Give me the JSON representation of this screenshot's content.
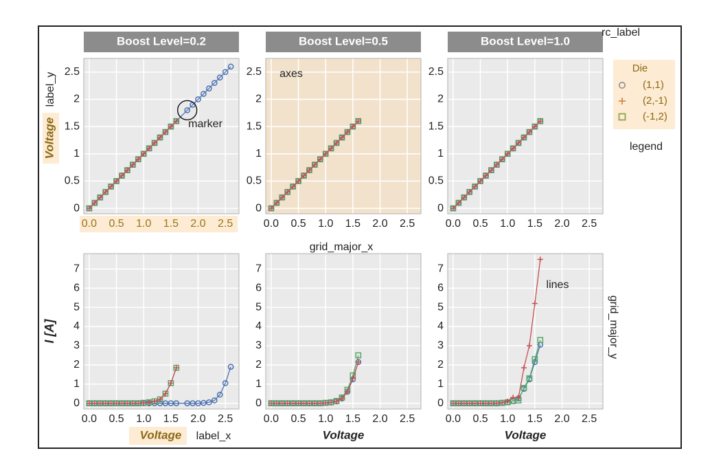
{
  "figure": {
    "facet_titles": [
      "Boost Level=0.2",
      "Boost Level=0.5",
      "Boost Level=1.0"
    ],
    "ylabel_top": "Voltage",
    "ylabel_bottom": "I [A]",
    "xlabel": "Voltage",
    "legend": {
      "title": "Die",
      "entries": [
        {
          "label": "(1,1)",
          "marker": "circle",
          "color": "#4c72b0"
        },
        {
          "label": "(2,-1)",
          "marker": "plus",
          "color": "#c44e52"
        },
        {
          "label": "(-1,2)",
          "marker": "square",
          "color": "#55a868"
        }
      ]
    },
    "annotations": {
      "rc_label": "rc_label",
      "label_y": "label_y",
      "marker": "marker",
      "axes": "axes",
      "legend": "legend",
      "grid_major_x": "grid_major_x",
      "lines": "lines",
      "grid_major_y": "grid_major_y",
      "label_x": "label_x"
    },
    "colors": {
      "panel_bg": "#eaeaea",
      "highlight_bg": "#f2e2cc",
      "label_highlight_bg": "#fdebd3",
      "strip_bg": "#8c8c8c",
      "label_gold": "#8b6914",
      "tick_gold": "#9a7418"
    }
  },
  "chart_data": [
    {
      "type": "line",
      "panel": "Boost Level=0.2",
      "row": "top",
      "xlim": [
        -0.1,
        2.75
      ],
      "ylim": [
        -0.1,
        2.75
      ],
      "xticks": [
        0.0,
        0.5,
        1.0,
        1.5,
        2.0,
        2.5
      ],
      "yticks": [
        0.0,
        0.5,
        1.0,
        1.5,
        2.0,
        2.5
      ],
      "series": [
        {
          "name": "(1,1)",
          "x": [
            0,
            0.1,
            0.2,
            0.3,
            0.4,
            0.5,
            0.6,
            0.7,
            0.8,
            0.9,
            1.0,
            1.1,
            1.2,
            1.3,
            1.4,
            1.5,
            1.6,
            1.8,
            1.9,
            2.0,
            2.1,
            2.2,
            2.3,
            2.4,
            2.5,
            2.6
          ],
          "y": [
            0,
            0.1,
            0.2,
            0.3,
            0.4,
            0.5,
            0.6,
            0.7,
            0.8,
            0.9,
            1.0,
            1.1,
            1.2,
            1.3,
            1.4,
            1.5,
            1.6,
            1.8,
            1.9,
            2.0,
            2.1,
            2.2,
            2.3,
            2.4,
            2.5,
            2.6
          ]
        },
        {
          "name": "(2,-1)",
          "x": [
            0,
            0.1,
            0.2,
            0.3,
            0.4,
            0.5,
            0.6,
            0.7,
            0.8,
            0.9,
            1.0,
            1.1,
            1.2,
            1.3,
            1.4,
            1.5,
            1.6
          ],
          "y": [
            0,
            0.1,
            0.2,
            0.3,
            0.4,
            0.5,
            0.6,
            0.7,
            0.8,
            0.9,
            1.0,
            1.1,
            1.2,
            1.3,
            1.4,
            1.5,
            1.6
          ]
        },
        {
          "name": "(-1,2)",
          "x": [
            0,
            0.1,
            0.2,
            0.3,
            0.4,
            0.5,
            0.6,
            0.7,
            0.8,
            0.9,
            1.0,
            1.1,
            1.2,
            1.3,
            1.4,
            1.5,
            1.6
          ],
          "y": [
            0,
            0.1,
            0.2,
            0.3,
            0.4,
            0.5,
            0.6,
            0.7,
            0.8,
            0.9,
            1.0,
            1.1,
            1.2,
            1.3,
            1.4,
            1.5,
            1.6
          ]
        }
      ]
    },
    {
      "type": "line",
      "panel": "Boost Level=0.5",
      "row": "top",
      "xlim": [
        -0.1,
        2.75
      ],
      "ylim": [
        -0.1,
        2.75
      ],
      "xticks": [
        0.0,
        0.5,
        1.0,
        1.5,
        2.0,
        2.5
      ],
      "yticks": [
        0.0,
        0.5,
        1.0,
        1.5,
        2.0,
        2.5
      ],
      "series": [
        {
          "name": "(1,1)",
          "x": [
            0,
            0.1,
            0.2,
            0.3,
            0.4,
            0.5,
            0.6,
            0.7,
            0.8,
            0.9,
            1.0,
            1.1,
            1.2,
            1.3,
            1.4,
            1.5,
            1.6
          ],
          "y": [
            0,
            0.1,
            0.2,
            0.3,
            0.4,
            0.5,
            0.6,
            0.7,
            0.8,
            0.9,
            1.0,
            1.1,
            1.2,
            1.3,
            1.4,
            1.5,
            1.6
          ]
        },
        {
          "name": "(2,-1)",
          "x": [
            0,
            0.1,
            0.2,
            0.3,
            0.4,
            0.5,
            0.6,
            0.7,
            0.8,
            0.9,
            1.0,
            1.1,
            1.2,
            1.3,
            1.4,
            1.5,
            1.6
          ],
          "y": [
            0,
            0.1,
            0.2,
            0.3,
            0.4,
            0.5,
            0.6,
            0.7,
            0.8,
            0.9,
            1.0,
            1.1,
            1.2,
            1.3,
            1.4,
            1.5,
            1.6
          ]
        },
        {
          "name": "(-1,2)",
          "x": [
            0,
            0.1,
            0.2,
            0.3,
            0.4,
            0.5,
            0.6,
            0.7,
            0.8,
            0.9,
            1.0,
            1.1,
            1.2,
            1.3,
            1.4,
            1.5,
            1.6
          ],
          "y": [
            0,
            0.1,
            0.2,
            0.3,
            0.4,
            0.5,
            0.6,
            0.7,
            0.8,
            0.9,
            1.0,
            1.1,
            1.2,
            1.3,
            1.4,
            1.5,
            1.6
          ]
        }
      ]
    },
    {
      "type": "line",
      "panel": "Boost Level=1.0",
      "row": "top",
      "xlim": [
        -0.1,
        2.75
      ],
      "ylim": [
        -0.1,
        2.75
      ],
      "xticks": [
        0.0,
        0.5,
        1.0,
        1.5,
        2.0,
        2.5
      ],
      "yticks": [
        0.0,
        0.5,
        1.0,
        1.5,
        2.0,
        2.5
      ],
      "series": [
        {
          "name": "(1,1)",
          "x": [
            0,
            0.1,
            0.2,
            0.3,
            0.4,
            0.5,
            0.6,
            0.7,
            0.8,
            0.9,
            1.0,
            1.1,
            1.2,
            1.3,
            1.4,
            1.5,
            1.6
          ],
          "y": [
            0,
            0.1,
            0.2,
            0.3,
            0.4,
            0.5,
            0.6,
            0.7,
            0.8,
            0.9,
            1.0,
            1.1,
            1.2,
            1.3,
            1.4,
            1.5,
            1.6
          ]
        },
        {
          "name": "(2,-1)",
          "x": [
            0,
            0.1,
            0.2,
            0.3,
            0.4,
            0.5,
            0.6,
            0.7,
            0.8,
            0.9,
            1.0,
            1.1,
            1.2,
            1.3,
            1.4,
            1.5,
            1.6
          ],
          "y": [
            0,
            0.1,
            0.2,
            0.3,
            0.4,
            0.5,
            0.6,
            0.7,
            0.8,
            0.9,
            1.0,
            1.1,
            1.2,
            1.3,
            1.4,
            1.5,
            1.6
          ]
        },
        {
          "name": "(-1,2)",
          "x": [
            0,
            0.1,
            0.2,
            0.3,
            0.4,
            0.5,
            0.6,
            0.7,
            0.8,
            0.9,
            1.0,
            1.1,
            1.2,
            1.3,
            1.4,
            1.5,
            1.6
          ],
          "y": [
            0,
            0.1,
            0.2,
            0.3,
            0.4,
            0.5,
            0.6,
            0.7,
            0.8,
            0.9,
            1.0,
            1.1,
            1.2,
            1.3,
            1.4,
            1.5,
            1.6
          ]
        }
      ]
    },
    {
      "type": "line",
      "panel": "Boost Level=0.2",
      "row": "bottom",
      "xlim": [
        -0.1,
        2.75
      ],
      "ylim": [
        -0.3,
        7.8
      ],
      "xticks": [
        0.0,
        0.5,
        1.0,
        1.5,
        2.0,
        2.5
      ],
      "yticks": [
        0,
        1,
        2,
        3,
        4,
        5,
        6,
        7
      ],
      "series": [
        {
          "name": "(1,1)",
          "x": [
            0,
            0.1,
            0.2,
            0.3,
            0.4,
            0.5,
            0.6,
            0.7,
            0.8,
            0.9,
            1.0,
            1.1,
            1.2,
            1.3,
            1.4,
            1.5,
            1.6,
            1.8,
            1.9,
            2.0,
            2.1,
            2.2,
            2.3,
            2.4,
            2.5,
            2.6
          ],
          "y": [
            0,
            0,
            0,
            0,
            0,
            0,
            0,
            0,
            0,
            0,
            0,
            0,
            0,
            0,
            0,
            0,
            0,
            0,
            0,
            0,
            0.02,
            0.05,
            0.15,
            0.45,
            1.05,
            1.9
          ]
        },
        {
          "name": "(2,-1)",
          "x": [
            0,
            0.1,
            0.2,
            0.3,
            0.4,
            0.5,
            0.6,
            0.7,
            0.8,
            0.9,
            1.0,
            1.1,
            1.2,
            1.3,
            1.4,
            1.5,
            1.6
          ],
          "y": [
            0,
            0,
            0,
            0,
            0,
            0,
            0,
            0,
            0,
            0,
            0.02,
            0.05,
            0.1,
            0.2,
            0.5,
            1.05,
            1.85
          ]
        },
        {
          "name": "(-1,2)",
          "x": [
            0,
            0.1,
            0.2,
            0.3,
            0.4,
            0.5,
            0.6,
            0.7,
            0.8,
            0.9,
            1.0,
            1.1,
            1.2,
            1.3,
            1.4,
            1.5,
            1.6
          ],
          "y": [
            0,
            0,
            0,
            0,
            0,
            0,
            0,
            0,
            0,
            0,
            0.02,
            0.05,
            0.1,
            0.2,
            0.5,
            1.05,
            1.85
          ]
        }
      ]
    },
    {
      "type": "line",
      "panel": "Boost Level=0.5",
      "row": "bottom",
      "xlim": [
        -0.1,
        2.75
      ],
      "ylim": [
        -0.3,
        7.8
      ],
      "xticks": [
        0.0,
        0.5,
        1.0,
        1.5,
        2.0,
        2.5
      ],
      "yticks": [
        0,
        1,
        2,
        3,
        4,
        5,
        6,
        7
      ],
      "series": [
        {
          "name": "(1,1)",
          "x": [
            0,
            0.1,
            0.2,
            0.3,
            0.4,
            0.5,
            0.6,
            0.7,
            0.8,
            0.9,
            1.0,
            1.1,
            1.2,
            1.3,
            1.4,
            1.5,
            1.6
          ],
          "y": [
            0,
            0,
            0,
            0,
            0,
            0,
            0,
            0,
            0,
            0,
            0.02,
            0.04,
            0.1,
            0.25,
            0.6,
            1.25,
            2.15
          ]
        },
        {
          "name": "(2,-1)",
          "x": [
            0,
            0.1,
            0.2,
            0.3,
            0.4,
            0.5,
            0.6,
            0.7,
            0.8,
            0.9,
            1.0,
            1.1,
            1.2,
            1.3,
            1.4,
            1.5,
            1.6
          ],
          "y": [
            0,
            0,
            0,
            0,
            0,
            0,
            0,
            0,
            0,
            0,
            0.02,
            0.04,
            0.1,
            0.25,
            0.6,
            1.3,
            2.15
          ]
        },
        {
          "name": "(-1,2)",
          "x": [
            0,
            0.1,
            0.2,
            0.3,
            0.4,
            0.5,
            0.6,
            0.7,
            0.8,
            0.9,
            1.0,
            1.1,
            1.2,
            1.3,
            1.4,
            1.5,
            1.6
          ],
          "y": [
            0,
            0,
            0,
            0,
            0,
            0,
            0,
            0,
            0,
            0,
            0.02,
            0.05,
            0.12,
            0.3,
            0.7,
            1.45,
            2.5
          ]
        }
      ]
    },
    {
      "type": "line",
      "panel": "Boost Level=1.0",
      "row": "bottom",
      "xlim": [
        -0.1,
        2.75
      ],
      "ylim": [
        -0.3,
        7.8
      ],
      "xticks": [
        0.0,
        0.5,
        1.0,
        1.5,
        2.0,
        2.5
      ],
      "yticks": [
        0,
        1,
        2,
        3,
        4,
        5,
        6,
        7
      ],
      "series": [
        {
          "name": "(1,1)",
          "x": [
            0,
            0.1,
            0.2,
            0.3,
            0.4,
            0.5,
            0.6,
            0.7,
            0.8,
            0.9,
            1.0,
            1.1,
            1.2,
            1.3,
            1.4,
            1.5,
            1.6
          ],
          "y": [
            0,
            0,
            0,
            0,
            0,
            0,
            0,
            0,
            0,
            0.02,
            0.05,
            0.12,
            0.25,
            0.75,
            1.25,
            2.15,
            3.05
          ]
        },
        {
          "name": "(2,-1)",
          "x": [
            0,
            0.1,
            0.2,
            0.3,
            0.4,
            0.5,
            0.6,
            0.7,
            0.8,
            0.9,
            1.0,
            1.1,
            1.2,
            1.3,
            1.4,
            1.5,
            1.6
          ],
          "y": [
            0,
            0,
            0,
            0,
            0,
            0,
            0,
            0,
            0,
            0.03,
            0.1,
            0.3,
            0.3,
            1.85,
            3.0,
            5.2,
            7.5
          ]
        },
        {
          "name": "(-1,2)",
          "x": [
            0,
            0.1,
            0.2,
            0.3,
            0.4,
            0.5,
            0.6,
            0.7,
            0.8,
            0.9,
            1.0,
            1.1,
            1.2,
            1.3,
            1.4,
            1.5,
            1.6
          ],
          "y": [
            0,
            0,
            0,
            0,
            0,
            0,
            0,
            0,
            0,
            0.02,
            0.05,
            0.12,
            0.15,
            0.8,
            1.3,
            2.3,
            3.3
          ]
        }
      ]
    }
  ]
}
